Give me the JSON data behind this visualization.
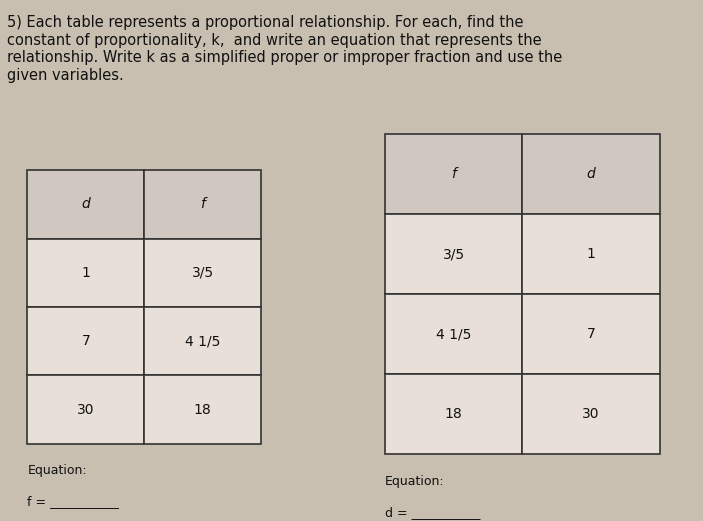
{
  "title_text": "5) Each table represents a proportional relationship. For each, find the\nconstant of proportionality, k,  and write an equation that represents the\nrelationship. Write k as a simplified proper or improper fraction and use the\ngiven variables.",
  "bg_color": "#c8bfb0",
  "table1": {
    "headers": [
      "d",
      "f"
    ],
    "rows": [
      [
        "1",
        "3/5"
      ],
      [
        "7",
        "4 1/5"
      ],
      [
        "30",
        "18"
      ]
    ],
    "equation_label": "Equation:",
    "equation_var": "f = ___________"
  },
  "table2": {
    "headers": [
      "f",
      "d"
    ],
    "rows": [
      [
        "3/5",
        "1"
      ],
      [
        "4 1/5",
        "7"
      ],
      [
        "18",
        "30"
      ]
    ],
    "equation_label": "Equation:",
    "equation_var": "d = ___________"
  },
  "text_color": "#111111",
  "table_bg": "#e8e0d8",
  "header_bg": "#d0c8c0",
  "font_size_title": 10.5,
  "font_size_table": 10,
  "font_size_eq": 9
}
